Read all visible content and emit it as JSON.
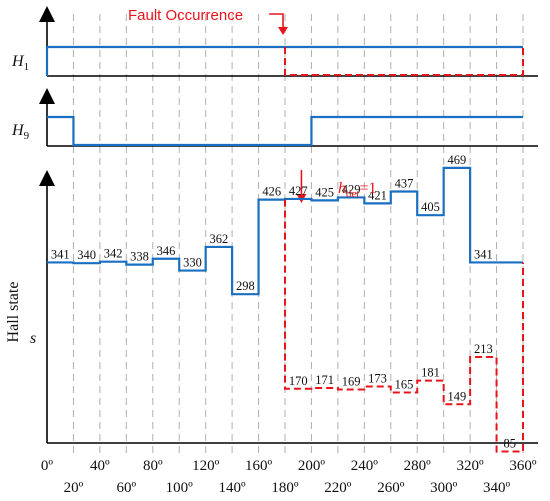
{
  "colors": {
    "normal": "#1a6fc1",
    "fault": "#e8141b",
    "axis": "#000000",
    "grid": "#b0b0b0"
  },
  "chart_data": {
    "type": "line",
    "x_ticks_top": [
      "0º",
      "40º",
      "80º",
      "120º",
      "160º",
      "200º",
      "240º",
      "280º",
      "320º",
      "360º"
    ],
    "x_ticks_bottom": [
      "20º",
      "60º",
      "100º",
      "140º",
      "180º",
      "220º",
      "260º",
      "300º",
      "340º"
    ],
    "grid_every_deg": 20,
    "x_range_deg": [
      0,
      360
    ],
    "panels": [
      {
        "label": "H",
        "subscript": "1",
        "type": "step",
        "normal": {
          "segments": [
            {
              "from": 0,
              "to": 360,
              "level": 1
            }
          ],
          "edges_down": [
            0
          ],
          "edges_up": []
        },
        "fault": {
          "segments": [
            {
              "from": 180,
              "to": 360,
              "level": 0
            }
          ],
          "edges": [
            180,
            360
          ]
        }
      },
      {
        "label": "H",
        "subscript": "9",
        "type": "step",
        "normal": {
          "segments": [
            {
              "from": 0,
              "to": 20,
              "level": 1
            },
            {
              "from": 20,
              "to": 200,
              "level": 0
            },
            {
              "from": 200,
              "to": 360,
              "level": 1
            }
          ],
          "edges": [
            20,
            200
          ]
        }
      }
    ],
    "hall_state": {
      "ylabel": "Hall state",
      "ylabel_symbol": "s",
      "normal_values": [
        341,
        340,
        342,
        338,
        346,
        330,
        362,
        298,
        426,
        427,
        425,
        429,
        421,
        437,
        405,
        469,
        341
      ],
      "normal_step_deg": 20,
      "fault_start_deg": 180,
      "fault_values": [
        170,
        171,
        169,
        173,
        165,
        181,
        149,
        213,
        85
      ],
      "fault_step_deg": 20,
      "y_range": [
        60,
        500
      ]
    },
    "annotations": {
      "fault": "Fault Occurrence",
      "hdet_symbol": "h",
      "hdet_sub": "det",
      "hdet_value": "=1"
    }
  }
}
